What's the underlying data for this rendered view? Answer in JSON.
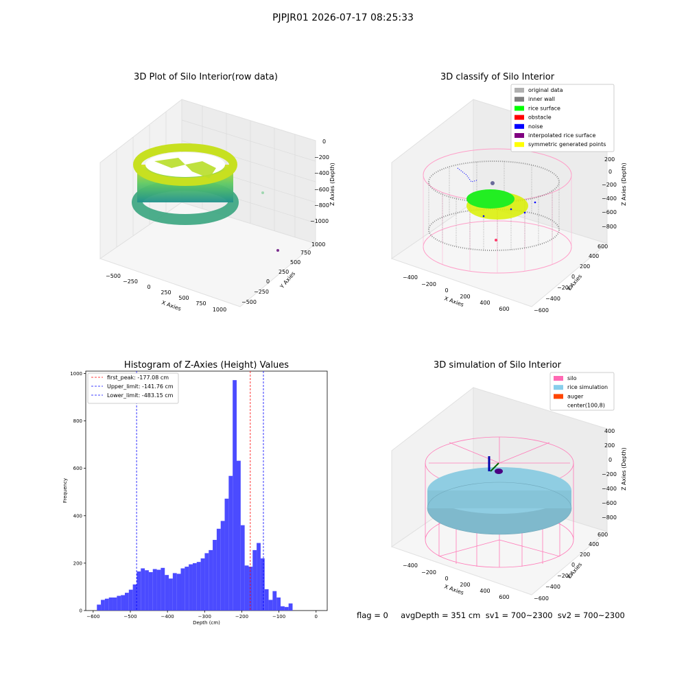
{
  "suptitle": "PJPJR01 2026-07-17 08:25:33",
  "panels": {
    "raw": {
      "title": "3D Plot of Silo Interior(row data)",
      "xlabel": "X Axies",
      "ylabel": "Y Axies",
      "zlabel": "Z Axies (Depth)",
      "xticks": [
        "−500",
        "−250",
        "0",
        "250",
        "500",
        "750",
        "1000"
      ],
      "yticks": [
        "−500",
        "−250",
        "0",
        "250",
        "500",
        "750",
        "1000"
      ],
      "zticks": [
        "0",
        "−200",
        "−400",
        "−600",
        "−800",
        "−1000"
      ]
    },
    "classify": {
      "title": "3D classify of Silo Interior",
      "xlabel": "X Axies",
      "ylabel": "Y Axies",
      "zlabel": "Z Axies (Depth)",
      "xticks": [
        "−400",
        "−200",
        "0",
        "200",
        "400",
        "600"
      ],
      "yticks": [
        "−600",
        "−400",
        "−200",
        "0",
        "200",
        "400",
        "600"
      ],
      "zticks": [
        "200",
        "0",
        "−200",
        "−400",
        "−600",
        "−800"
      ],
      "legend": [
        {
          "label": "original data",
          "color": "#b0b0b0"
        },
        {
          "label": "inner wall",
          "color": "#808080"
        },
        {
          "label": "rice surface",
          "color": "#00ff00"
        },
        {
          "label": "obstacle",
          "color": "#ff0000"
        },
        {
          "label": "noise",
          "color": "#0000ff"
        },
        {
          "label": "interpolated rice surface",
          "color": "#800080"
        },
        {
          "label": "symmetric generated points",
          "color": "#ffff00"
        }
      ]
    },
    "simulation": {
      "title": "3D simulation of Silo Interior",
      "xlabel": "X Axies",
      "ylabel": "Y Axies",
      "zlabel": "Z Axies (Depth)",
      "xticks": [
        "−400",
        "−200",
        "0",
        "200",
        "400",
        "600"
      ],
      "yticks": [
        "−600",
        "−400",
        "−200",
        "0",
        "200",
        "400",
        "600"
      ],
      "zticks": [
        "400",
        "200",
        "0",
        "−200",
        "−400",
        "−600",
        "−800"
      ],
      "legend": [
        {
          "label": "silo",
          "color": "#ff69b4"
        },
        {
          "label": "rice simulation",
          "color": "#87ceeb"
        },
        {
          "label": "auger",
          "color": "#ff4500"
        },
        {
          "label": "center(100,8)",
          "color": "#ffffff"
        }
      ]
    }
  },
  "footer": "flag = 0     avgDepth = 351 cm  sv1 = 700~2300  sv2 = 700~2300",
  "chart_data": [
    {
      "type": "bar",
      "title": "Histogram of Z-Axies (Height) Values",
      "xlabel": "Depth (cm)",
      "ylabel": "Frequency",
      "xlim": [
        -620,
        30
      ],
      "ylim": [
        0,
        1010
      ],
      "xticks": [
        "−600",
        "−500",
        "−400",
        "−300",
        "−200",
        "−100",
        "0"
      ],
      "yticks": [
        "0",
        "200",
        "400",
        "600",
        "800",
        "1000"
      ],
      "bin_start": -590,
      "bin_width": 10.75,
      "bar_color": "#4b4bff",
      "values": [
        25,
        45,
        50,
        55,
        55,
        62,
        65,
        75,
        88,
        110,
        165,
        178,
        170,
        162,
        175,
        172,
        180,
        150,
        135,
        158,
        155,
        178,
        185,
        195,
        200,
        205,
        220,
        242,
        255,
        298,
        345,
        378,
        472,
        568,
        972,
        632,
        360,
        190,
        185,
        255,
        285,
        220,
        90,
        45,
        82,
        55,
        18,
        15,
        30
      ],
      "lines": [
        {
          "name": "first_peak: -177.08 cm",
          "x": -177.08,
          "color": "#ff0000"
        },
        {
          "name": "Upper_limit: -141.76 cm",
          "x": -141.76,
          "color": "#0000ff"
        },
        {
          "name": "Lower_limit: -483.15 cm",
          "x": -483.15,
          "color": "#0000ff"
        }
      ]
    }
  ]
}
